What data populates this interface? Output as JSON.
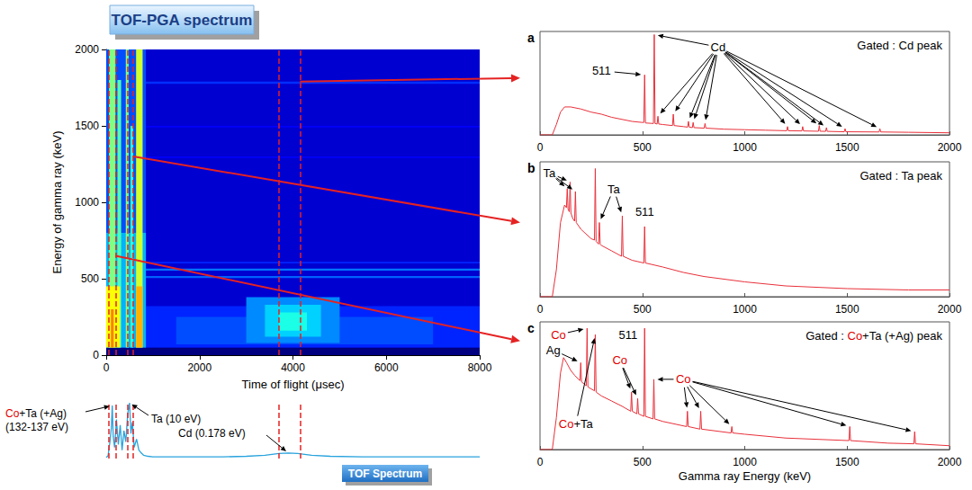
{
  "chart_data": [
    {
      "type": "heatmap",
      "title": "TOF-PGA spectrum",
      "xlabel": "Time of flight (μsec)",
      "ylabel": "Energy of gamma ray (keV)",
      "xlim": [
        0,
        8000
      ],
      "ylim": [
        0,
        2000
      ],
      "xticks": [
        0,
        2000,
        4000,
        6000,
        8000
      ],
      "yticks": [
        0,
        500,
        1000,
        1500,
        2000
      ],
      "color_range": [
        0,
        1
      ],
      "cells": [
        [
          0,
          8000,
          0,
          2000,
          0.08
        ],
        [
          0,
          8000,
          0,
          50,
          0.0
        ],
        [
          800,
          8000,
          50,
          320,
          0.16
        ],
        [
          1500,
          7000,
          70,
          250,
          0.2
        ],
        [
          3000,
          5000,
          80,
          380,
          0.26
        ],
        [
          3400,
          4600,
          120,
          330,
          0.33
        ],
        [
          3700,
          4300,
          160,
          280,
          0.4
        ],
        [
          800,
          8000,
          505,
          518,
          0.22
        ],
        [
          800,
          8000,
          553,
          566,
          0.24
        ],
        [
          800,
          8000,
          600,
          610,
          0.16
        ],
        [
          800,
          8000,
          1290,
          1300,
          0.12
        ],
        [
          800,
          8000,
          1490,
          1500,
          0.12
        ],
        [
          800,
          8000,
          1775,
          1790,
          0.17
        ],
        [
          0,
          850,
          50,
          2000,
          0.2
        ],
        [
          0,
          850,
          50,
          800,
          0.3
        ],
        [
          60,
          200,
          50,
          2000,
          0.5
        ],
        [
          240,
          320,
          50,
          1800,
          0.45
        ],
        [
          420,
          480,
          50,
          2000,
          0.5
        ],
        [
          520,
          580,
          50,
          1500,
          0.42
        ],
        [
          640,
          780,
          50,
          2000,
          0.58
        ],
        [
          0,
          300,
          50,
          450,
          0.62
        ],
        [
          640,
          780,
          50,
          450,
          0.7
        ],
        [
          100,
          160,
          50,
          300,
          0.75
        ]
      ]
    },
    {
      "type": "line",
      "title": "TOF Spectrum",
      "color": "#29a3dd",
      "xlim": [
        0,
        8000
      ],
      "ylim": [
        0,
        100
      ],
      "tick_labels": false,
      "x": [
        0,
        40,
        80,
        110,
        130,
        150,
        180,
        220,
        260,
        300,
        340,
        380,
        420,
        460,
        500,
        530,
        560,
        600,
        650,
        700,
        750,
        800,
        900,
        1000,
        1500,
        2000,
        2500,
        3000,
        3400,
        3700,
        3900,
        4100,
        4400,
        4800,
        5500,
        6500,
        8000
      ],
      "values": [
        2,
        5,
        30,
        55,
        95,
        40,
        20,
        70,
        25,
        60,
        15,
        50,
        30,
        80,
        100,
        45,
        65,
        20,
        35,
        15,
        10,
        6,
        4,
        3,
        3,
        3,
        3,
        4,
        6,
        9,
        10,
        9,
        6,
        4,
        3,
        3,
        3
      ],
      "annotations": [
        {
          "parts": [
            {
              "text": "Co",
              "color": "#e00000"
            },
            {
              "text": "+Ta (+Ag)\n(132-137 eV)"
            }
          ],
          "targets": [
            130
          ]
        },
        {
          "text": "Ta (10 eV)",
          "targets": [
            500
          ]
        },
        {
          "text": "Cd (0.178 eV)",
          "targets": [
            3900
          ]
        }
      ]
    },
    {
      "type": "line",
      "panel": "a",
      "title": "Gated : Cd peak",
      "color": "#e8303a",
      "gate": [
        3700,
        4150
      ],
      "xlim": [
        0,
        2000
      ],
      "ylim": [
        0,
        100
      ],
      "xticks": [
        0,
        500,
        1000,
        1500,
        2000
      ],
      "tick_labels": "x",
      "x": [
        0,
        60,
        80,
        100,
        120,
        150,
        200,
        250,
        300,
        350,
        400,
        450,
        500,
        507,
        511,
        515,
        554,
        558,
        562,
        572,
        576,
        580,
        600,
        647,
        651,
        655,
        700,
        721,
        725,
        729,
        744,
        748,
        752,
        802,
        806,
        810,
        900,
        1000,
        1100,
        1205,
        1209,
        1213,
        1279,
        1283,
        1287,
        1360,
        1364,
        1368,
        1395,
        1399,
        1403,
        1486,
        1490,
        1494,
        1656,
        1660,
        1664,
        1800,
        2000
      ],
      "values": [
        0,
        0,
        10,
        22,
        27,
        27,
        25,
        22,
        20,
        17,
        15,
        13,
        12,
        12,
        58,
        11.5,
        11,
        97,
        11,
        10.5,
        18,
        10.5,
        10,
        9,
        20,
        9,
        8,
        7.5,
        13,
        7.5,
        7,
        12,
        7,
        6.5,
        11,
        6.5,
        5.5,
        5,
        4.5,
        4,
        8,
        4,
        3.8,
        8,
        3.8,
        3.5,
        9,
        3.5,
        3.4,
        7,
        3.4,
        3,
        6,
        3,
        2.8,
        6,
        2.8,
        2.5,
        2
      ],
      "annotations": [
        {
          "text": "511",
          "targets": [
            511
          ]
        },
        {
          "text": "Cd",
          "targets": [
            558,
            576,
            651,
            725,
            748,
            806,
            1209,
            1283,
            1364,
            1399,
            1490,
            1660
          ]
        }
      ]
    },
    {
      "type": "line",
      "panel": "b",
      "title": "Gated : Ta peak",
      "color": "#e8303a",
      "gate": [
        450,
        580
      ],
      "xlim": [
        0,
        2000
      ],
      "ylim": [
        0,
        100
      ],
      "xticks": [
        0,
        500,
        1000,
        1500,
        2000
      ],
      "tick_labels": "x",
      "x": [
        0,
        60,
        80,
        100,
        120,
        129,
        133,
        137,
        143,
        147,
        151,
        160,
        169,
        173,
        177,
        200,
        250,
        266,
        270,
        274,
        286,
        290,
        294,
        300,
        350,
        398,
        402,
        406,
        450,
        507,
        511,
        515,
        600,
        700,
        800,
        1000,
        1200,
        1500,
        1800,
        2000
      ],
      "values": [
        0,
        0,
        20,
        55,
        68,
        66,
        80,
        65,
        63,
        85,
        62,
        58,
        56,
        78,
        55,
        50,
        43,
        42,
        95,
        41,
        39,
        55,
        39,
        38,
        34,
        30,
        60,
        30,
        27,
        25,
        52,
        25,
        22,
        18,
        15,
        11,
        8,
        6,
        5,
        5
      ],
      "annotations": [
        {
          "text": "Ta",
          "targets": [
            133,
            147,
            173
          ]
        },
        {
          "text": "Ta",
          "targets": [
            290,
            402
          ]
        },
        {
          "text": "511",
          "targets": [
            511
          ]
        }
      ]
    },
    {
      "type": "line",
      "panel": "c",
      "color": "#e8303a",
      "title_parts": [
        {
          "text": "Gated : "
        },
        {
          "text": "Co",
          "color": "#e00000"
        },
        {
          "text": "+Ta (+Ag) peak"
        }
      ],
      "gate": [
        60,
        200
      ],
      "xlabel": "Gamma ray Energy (keV)",
      "xlim": [
        0,
        2000
      ],
      "ylim": [
        0,
        100
      ],
      "xticks": [
        0,
        500,
        1000,
        1500,
        2000
      ],
      "tick_labels": "x",
      "x": [
        0,
        60,
        80,
        100,
        115,
        130,
        150,
        170,
        195,
        199,
        203,
        226,
        230,
        234,
        266,
        270,
        274,
        300,
        350,
        400,
        443,
        447,
        451,
        473,
        477,
        481,
        507,
        511,
        515,
        552,
        556,
        560,
        600,
        716,
        720,
        724,
        781,
        785,
        789,
        933,
        937,
        941,
        1000,
        1200,
        1509,
        1513,
        1517,
        1700,
        1826,
        1830,
        1834,
        2000
      ],
      "values": [
        0,
        0,
        25,
        60,
        72,
        68,
        62,
        58,
        54,
        68,
        53,
        50,
        95,
        49,
        46,
        90,
        45,
        42,
        38,
        34,
        30,
        45,
        30,
        28,
        40,
        28,
        26,
        95,
        26,
        24,
        55,
        24,
        22,
        18,
        30,
        18,
        16,
        30,
        16,
        13,
        18,
        13,
        12,
        9,
        7,
        18,
        7,
        5,
        4.5,
        14,
        4.5,
        3
      ],
      "annotations": [
        {
          "text": "Co",
          "color": "#e00000",
          "targets": [
            230
          ]
        },
        {
          "text": "Ag",
          "targets": [
            199
          ]
        },
        {
          "parts": [
            {
              "text": "Co",
              "color": "#e00000"
            },
            {
              "text": "+Ta"
            }
          ],
          "targets": [
            270
          ]
        },
        {
          "text": "511",
          "targets": [
            511
          ]
        },
        {
          "text": "Co",
          "color": "#e00000",
          "targets": [
            447,
            477
          ]
        },
        {
          "text": "Co",
          "color": "#e00000",
          "targets": [
            556,
            720,
            785,
            937,
            1513,
            1830
          ]
        }
      ]
    }
  ]
}
